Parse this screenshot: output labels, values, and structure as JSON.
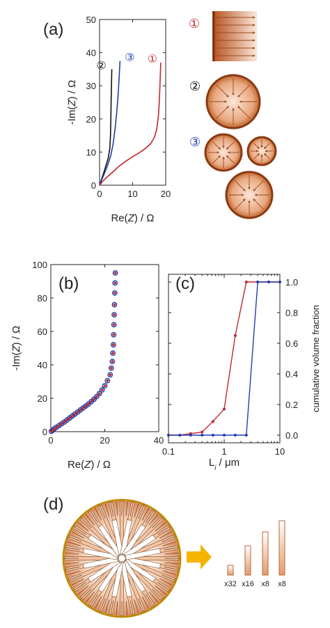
{
  "panels": {
    "a": {
      "tag": "(a)"
    },
    "b": {
      "tag": "(b)"
    },
    "c": {
      "tag": "(c)"
    },
    "d": {
      "tag": "(d)"
    }
  },
  "colors": {
    "black": "#111111",
    "red": "#c0272d",
    "blue": "#1f3ea8",
    "copper_dark": "#8a3a12",
    "copper_mid": "#d98a5a",
    "copper_light": "#f7dccb",
    "arrow_yellow": "#f5b400",
    "rim_gold": "#d9a21a"
  },
  "icons": {
    "circled_one": "①",
    "circled_two": "②",
    "circled_three": "③"
  },
  "chart_data": [
    {
      "id": "a",
      "type": "line",
      "xlabel_parts": [
        "Re(",
        "Z",
        ") / Ω"
      ],
      "ylabel_parts": [
        "-Im(",
        "Z",
        ") / Ω"
      ],
      "xlim": [
        0,
        20
      ],
      "ylim": [
        0,
        50
      ],
      "xticks": [
        "0",
        "10",
        "20"
      ],
      "yticks": [
        "0",
        "10",
        "20",
        "30",
        "40",
        "50"
      ],
      "series": [
        {
          "marker": "②",
          "color": "#111111",
          "points": [
            [
              0,
              0
            ],
            [
              0.4,
              1.2
            ],
            [
              1,
              3
            ],
            [
              1.8,
              5.5
            ],
            [
              2.6,
              8
            ],
            [
              3.1,
              11
            ],
            [
              3.3,
              15
            ],
            [
              3.4,
              20
            ],
            [
              3.5,
              25
            ],
            [
              3.6,
              30
            ],
            [
              3.7,
              35
            ]
          ]
        },
        {
          "marker": "③",
          "color": "#1f3ea8",
          "points": [
            [
              0,
              0
            ],
            [
              0.6,
              1.5
            ],
            [
              1.5,
              3.6
            ],
            [
              2.5,
              6.2
            ],
            [
              3.4,
              9
            ],
            [
              4.1,
              12.5
            ],
            [
              4.7,
              17
            ],
            [
              5.2,
              22
            ],
            [
              5.6,
              27
            ],
            [
              5.9,
              32
            ],
            [
              6.2,
              37.5
            ]
          ]
        },
        {
          "marker": "①",
          "color": "#c0272d",
          "points": [
            [
              0,
              0
            ],
            [
              0.8,
              1
            ],
            [
              2,
              2.2
            ],
            [
              4,
              4
            ],
            [
              6,
              5.8
            ],
            [
              8,
              7.3
            ],
            [
              10,
              8.6
            ],
            [
              12,
              9.8
            ],
            [
              14,
              11.2
            ],
            [
              15.5,
              12.6
            ],
            [
              16.6,
              14.5
            ],
            [
              17.3,
              17
            ],
            [
              17.8,
              21
            ],
            [
              18.1,
              26
            ],
            [
              18.3,
              31
            ],
            [
              18.5,
              37
            ]
          ]
        }
      ]
    },
    {
      "id": "b",
      "type": "scatter",
      "xlabel_parts": [
        "Re(",
        "Z",
        ") / Ω"
      ],
      "ylabel_parts": [
        "-Im(",
        "Z",
        ") / Ω"
      ],
      "xlim": [
        0,
        40
      ],
      "ylim": [
        0,
        100
      ],
      "xticks": [
        "0",
        "20",
        "40"
      ],
      "yticks": [
        "0",
        "20",
        "40",
        "60",
        "80",
        "100"
      ],
      "series": [
        {
          "style": "open-circle",
          "color": "#1f3ea8",
          "points": [
            [
              0.2,
              0.2
            ],
            [
              0.6,
              0.8
            ],
            [
              1.2,
              1.6
            ],
            [
              2,
              2.6
            ],
            [
              3,
              3.6
            ],
            [
              4,
              4.7
            ],
            [
              5,
              5.8
            ],
            [
              6,
              7
            ],
            [
              7,
              8.2
            ],
            [
              8,
              9.4
            ],
            [
              9,
              10.6
            ],
            [
              10,
              11.8
            ],
            [
              11,
              13
            ],
            [
              12,
              14.2
            ],
            [
              13,
              15.4
            ],
            [
              14,
              16.6
            ],
            [
              15,
              18
            ],
            [
              16,
              19.4
            ],
            [
              17,
              21
            ],
            [
              18,
              22.8
            ],
            [
              19,
              25
            ],
            [
              20,
              27.5
            ],
            [
              21,
              30.5
            ],
            [
              22,
              34
            ],
            [
              22.4,
              38
            ],
            [
              22.8,
              42
            ],
            [
              23,
              47
            ],
            [
              23.2,
              52
            ],
            [
              23.3,
              58
            ],
            [
              23.4,
              64
            ],
            [
              23.5,
              70
            ],
            [
              23.6,
              76
            ],
            [
              23.7,
              83
            ],
            [
              23.8,
              89
            ],
            [
              23.9,
              95
            ]
          ]
        },
        {
          "style": "filled-dot",
          "color": "#c0272d",
          "points": [
            [
              0.2,
              0.2
            ],
            [
              0.6,
              0.8
            ],
            [
              1.2,
              1.6
            ],
            [
              2,
              2.6
            ],
            [
              3,
              3.6
            ],
            [
              4,
              4.7
            ],
            [
              5,
              5.8
            ],
            [
              6,
              7
            ],
            [
              7,
              8.2
            ],
            [
              8,
              9.4
            ],
            [
              9,
              10.6
            ],
            [
              10,
              11.8
            ],
            [
              11,
              13
            ],
            [
              12,
              14.2
            ],
            [
              13,
              15.4
            ],
            [
              14,
              16.6
            ],
            [
              15,
              18
            ],
            [
              16,
              19.4
            ],
            [
              17,
              21
            ],
            [
              18,
              22.8
            ],
            [
              19,
              25
            ],
            [
              20,
              27.5
            ],
            [
              21,
              30.5
            ],
            [
              22,
              34
            ],
            [
              22.4,
              38
            ],
            [
              22.8,
              42
            ],
            [
              23,
              47
            ],
            [
              23.2,
              52
            ],
            [
              23.3,
              58
            ],
            [
              23.4,
              64
            ],
            [
              23.5,
              70
            ],
            [
              23.6,
              76
            ],
            [
              23.7,
              83
            ],
            [
              23.8,
              89
            ],
            [
              23.9,
              95
            ]
          ]
        }
      ]
    },
    {
      "id": "c",
      "type": "line",
      "xscale": "log",
      "xlabel_parts": [
        "L",
        "i",
        " / μm"
      ],
      "ylabel": "cumulative volume fraction",
      "xlim": [
        0.1,
        10
      ],
      "ylim": [
        -0.05,
        1.05
      ],
      "xticks": [
        "0.1",
        "1",
        "10"
      ],
      "yticks": [
        "0.0",
        "0.2",
        "0.4",
        "0.6",
        "0.8",
        "1.0"
      ],
      "series": [
        {
          "color": "#c0272d",
          "points": [
            [
              0.1,
              0.0
            ],
            [
              0.16,
              0.0
            ],
            [
              0.25,
              0.01
            ],
            [
              0.4,
              0.02
            ],
            [
              0.63,
              0.09
            ],
            [
              1.0,
              0.17
            ],
            [
              1.58,
              0.65
            ],
            [
              2.5,
              1.0
            ],
            [
              4.0,
              1.0
            ],
            [
              6.3,
              1.0
            ],
            [
              10,
              1.0
            ]
          ]
        },
        {
          "color": "#1f3ea8",
          "points": [
            [
              0.1,
              0.0
            ],
            [
              0.16,
              0.0
            ],
            [
              0.25,
              0.0
            ],
            [
              0.4,
              0.0
            ],
            [
              0.63,
              0.0
            ],
            [
              1.0,
              0.0
            ],
            [
              1.58,
              0.0
            ],
            [
              2.5,
              0.0
            ],
            [
              4.0,
              1.0
            ],
            [
              6.3,
              1.0
            ],
            [
              10,
              1.0
            ]
          ]
        }
      ]
    }
  ],
  "panel_d": {
    "multipliers": [
      "x32",
      "x16",
      "x8",
      "x8"
    ]
  }
}
